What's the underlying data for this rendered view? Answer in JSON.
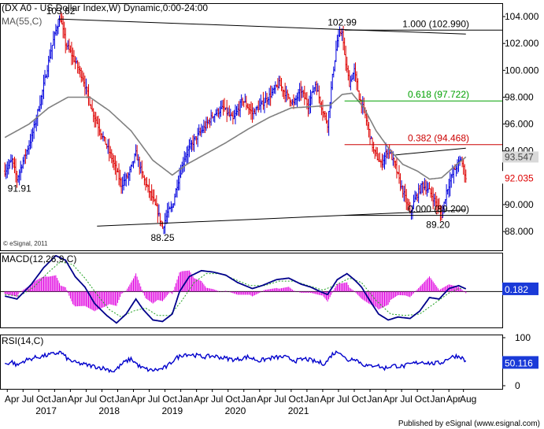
{
  "chart_data": [
    {
      "type": "candlestick",
      "panel": "price",
      "title": "(DX A0 - US Dollar Index,W) Dynamic,0:00-24:00",
      "overlay_label": "MA(55,C)",
      "copyright": "© eSignal, 2011",
      "ylim": [
        86.6,
        105.0
      ],
      "yticks": [
        "88.000",
        "90.000",
        "92.000",
        "94.000",
        "96.000",
        "98.000",
        "100.000",
        "102.000",
        "104.000"
      ],
      "last_value": "92.035",
      "ma_value": "93.547",
      "price_path": [
        [
          0,
          92.5
        ],
        [
          6,
          93.3
        ],
        [
          10,
          91.9
        ],
        [
          14,
          93.0
        ],
        [
          22,
          95.0
        ],
        [
          30,
          98.0
        ],
        [
          38,
          101.5
        ],
        [
          43,
          103.3
        ],
        [
          46,
          103.82
        ],
        [
          50,
          102.0
        ],
        [
          56,
          101.0
        ],
        [
          64,
          99.5
        ],
        [
          72,
          97.0
        ],
        [
          80,
          95.2
        ],
        [
          88,
          93.5
        ],
        [
          96,
          91.5
        ],
        [
          102,
          92.2
        ],
        [
          108,
          93.8
        ],
        [
          114,
          92.0
        ],
        [
          120,
          90.8
        ],
        [
          126,
          89.5
        ],
        [
          130,
          88.25
        ],
        [
          134,
          89.4
        ],
        [
          138,
          89.8
        ],
        [
          142,
          91.5
        ],
        [
          148,
          93.5
        ],
        [
          156,
          94.8
        ],
        [
          164,
          95.7
        ],
        [
          172,
          96.7
        ],
        [
          180,
          97.2
        ],
        [
          188,
          96.3
        ],
        [
          196,
          97.8
        ],
        [
          204,
          96.8
        ],
        [
          212,
          97.5
        ],
        [
          220,
          98.3
        ],
        [
          226,
          99.0
        ],
        [
          232,
          98.2
        ],
        [
          238,
          97.5
        ],
        [
          244,
          98.5
        ],
        [
          250,
          97.4
        ],
        [
          256,
          99.0
        ],
        [
          262,
          97.0
        ],
        [
          266,
          96.0
        ],
        [
          270,
          99.5
        ],
        [
          274,
          102.2
        ],
        [
          278,
          102.99
        ],
        [
          280,
          101.0
        ],
        [
          284,
          99.0
        ],
        [
          288,
          100.0
        ],
        [
          292,
          98.0
        ],
        [
          296,
          97.0
        ],
        [
          300,
          95.5
        ],
        [
          304,
          94.0
        ],
        [
          310,
          93.0
        ],
        [
          316,
          94.2
        ],
        [
          322,
          92.8
        ],
        [
          326,
          91.5
        ],
        [
          330,
          90.5
        ],
        [
          334,
          89.3
        ],
        [
          338,
          90.4
        ],
        [
          344,
          91.5
        ],
        [
          350,
          91.0
        ],
        [
          356,
          90.0
        ],
        [
          360,
          89.2
        ],
        [
          364,
          91.0
        ],
        [
          370,
          92.5
        ],
        [
          376,
          93.4
        ],
        [
          380,
          92.035
        ]
      ],
      "ma_path": [
        [
          0,
          95.0
        ],
        [
          20,
          96.0
        ],
        [
          36,
          97.2
        ],
        [
          52,
          98.0
        ],
        [
          70,
          98.0
        ],
        [
          86,
          97.0
        ],
        [
          104,
          95.5
        ],
        [
          122,
          93.3
        ],
        [
          138,
          92.2
        ],
        [
          150,
          93.0
        ],
        [
          164,
          93.7
        ],
        [
          182,
          94.6
        ],
        [
          200,
          95.6
        ],
        [
          218,
          96.5
        ],
        [
          236,
          97.2
        ],
        [
          254,
          97.3
        ],
        [
          268,
          97.4
        ],
        [
          278,
          98.2
        ],
        [
          286,
          98.3
        ],
        [
          296,
          97.2
        ],
        [
          306,
          95.5
        ],
        [
          318,
          94.0
        ],
        [
          328,
          93.0
        ],
        [
          340,
          92.5
        ],
        [
          350,
          91.9
        ],
        [
          360,
          92.0
        ],
        [
          370,
          92.8
        ],
        [
          380,
          93.547
        ]
      ],
      "trendlines": [
        {
          "from": [
            44,
            103.82
          ],
          "to": [
            380,
            102.7
          ]
        },
        {
          "from": [
            76,
            88.4
          ],
          "to": [
            380,
            89.6
          ]
        },
        {
          "from": [
            322,
            93.7
          ],
          "to": [
            380,
            94.2
          ]
        }
      ],
      "fib_levels": [
        {
          "label": "1.000 (102.990)",
          "value": 102.99,
          "color": "#000000",
          "x_start": 280
        },
        {
          "label": "0.618 (97.722)",
          "value": 97.722,
          "color": "#00a000",
          "x_start": 280
        },
        {
          "label": "0.382 (94.468)",
          "value": 94.468,
          "color": "#cc0000",
          "x_start": 280
        },
        {
          "label": "0.000 (89.200)",
          "value": 89.2,
          "color": "#000000",
          "x_start": 280
        }
      ],
      "annotations": [
        {
          "text": "103.82",
          "x": 46,
          "y": 103.82,
          "pos": "above"
        },
        {
          "text": "91.91",
          "x": 12,
          "y": 91.91,
          "pos": "below"
        },
        {
          "text": "88.25",
          "x": 130,
          "y": 88.25,
          "pos": "below"
        },
        {
          "text": "102.99",
          "x": 278,
          "y": 102.99,
          "pos": "above"
        },
        {
          "text": "89.20",
          "x": 357,
          "y": 89.2,
          "pos": "below"
        }
      ]
    },
    {
      "type": "line",
      "panel": "macd",
      "title": "MACD(12,26,9,C)",
      "ylim": [
        -2.4,
        2.6
      ],
      "last_value": "0.182",
      "macd_path": [
        [
          0,
          -0.3
        ],
        [
          10,
          -0.5
        ],
        [
          22,
          0.5
        ],
        [
          32,
          1.6
        ],
        [
          42,
          2.4
        ],
        [
          50,
          2.1
        ],
        [
          58,
          1.0
        ],
        [
          66,
          0.3
        ],
        [
          74,
          -0.8
        ],
        [
          84,
          -1.6
        ],
        [
          92,
          -2.1
        ],
        [
          100,
          -1.5
        ],
        [
          108,
          -0.5
        ],
        [
          114,
          -1.2
        ],
        [
          122,
          -1.9
        ],
        [
          130,
          -2.0
        ],
        [
          138,
          -1.5
        ],
        [
          144,
          0.0
        ],
        [
          152,
          1.0
        ],
        [
          162,
          1.4
        ],
        [
          172,
          1.3
        ],
        [
          182,
          1.1
        ],
        [
          192,
          0.6
        ],
        [
          204,
          0.2
        ],
        [
          212,
          0.4
        ],
        [
          224,
          0.8
        ],
        [
          234,
          0.9
        ],
        [
          244,
          0.5
        ],
        [
          252,
          0.3
        ],
        [
          260,
          0.0
        ],
        [
          266,
          -0.2
        ],
        [
          274,
          0.8
        ],
        [
          282,
          1.2
        ],
        [
          288,
          0.8
        ],
        [
          294,
          0.3
        ],
        [
          300,
          -0.5
        ],
        [
          308,
          -1.5
        ],
        [
          316,
          -1.9
        ],
        [
          324,
          -1.7
        ],
        [
          334,
          -1.8
        ],
        [
          342,
          -1.3
        ],
        [
          350,
          -0.4
        ],
        [
          358,
          -0.5
        ],
        [
          366,
          0.2
        ],
        [
          374,
          0.4
        ],
        [
          380,
          0.182
        ]
      ],
      "signal_path": [
        [
          0,
          -0.2
        ],
        [
          12,
          -0.3
        ],
        [
          24,
          0.3
        ],
        [
          36,
          1.3
        ],
        [
          46,
          2.0
        ],
        [
          56,
          1.8
        ],
        [
          66,
          0.9
        ],
        [
          76,
          -0.2
        ],
        [
          86,
          -1.2
        ],
        [
          96,
          -1.7
        ],
        [
          106,
          -1.3
        ],
        [
          116,
          -1.1
        ],
        [
          126,
          -1.6
        ],
        [
          136,
          -1.6
        ],
        [
          146,
          -0.6
        ],
        [
          156,
          0.6
        ],
        [
          166,
          1.2
        ],
        [
          178,
          1.2
        ],
        [
          190,
          0.8
        ],
        [
          202,
          0.4
        ],
        [
          214,
          0.4
        ],
        [
          226,
          0.7
        ],
        [
          238,
          0.7
        ],
        [
          250,
          0.4
        ],
        [
          262,
          0.1
        ],
        [
          272,
          0.4
        ],
        [
          284,
          0.9
        ],
        [
          294,
          0.6
        ],
        [
          306,
          -0.6
        ],
        [
          318,
          -1.5
        ],
        [
          330,
          -1.6
        ],
        [
          342,
          -1.5
        ],
        [
          354,
          -0.8
        ],
        [
          366,
          -0.1
        ],
        [
          374,
          0.2
        ],
        [
          380,
          0.25
        ]
      ]
    },
    {
      "type": "line",
      "panel": "rsi",
      "title": "RSI(14,C)",
      "ylim": [
        0,
        100
      ],
      "yticks": [
        "0",
        "100"
      ],
      "last_value": "50.116",
      "rsi_path": [
        [
          0,
          45
        ],
        [
          6,
          50
        ],
        [
          10,
          42
        ],
        [
          16,
          52
        ],
        [
          24,
          58
        ],
        [
          32,
          62
        ],
        [
          40,
          66
        ],
        [
          46,
          70
        ],
        [
          52,
          55
        ],
        [
          58,
          48
        ],
        [
          66,
          44
        ],
        [
          74,
          40
        ],
        [
          82,
          36
        ],
        [
          90,
          30
        ],
        [
          98,
          48
        ],
        [
          104,
          56
        ],
        [
          112,
          38
        ],
        [
          120,
          32
        ],
        [
          128,
          34
        ],
        [
          134,
          40
        ],
        [
          140,
          56
        ],
        [
          148,
          66
        ],
        [
          156,
          64
        ],
        [
          164,
          60
        ],
        [
          172,
          62
        ],
        [
          180,
          58
        ],
        [
          190,
          54
        ],
        [
          200,
          60
        ],
        [
          210,
          52
        ],
        [
          220,
          58
        ],
        [
          230,
          60
        ],
        [
          240,
          52
        ],
        [
          248,
          56
        ],
        [
          256,
          50
        ],
        [
          264,
          46
        ],
        [
          270,
          66
        ],
        [
          276,
          72
        ],
        [
          282,
          52
        ],
        [
          288,
          58
        ],
        [
          294,
          46
        ],
        [
          300,
          40
        ],
        [
          306,
          44
        ],
        [
          312,
          36
        ],
        [
          320,
          42
        ],
        [
          328,
          40
        ],
        [
          336,
          46
        ],
        [
          344,
          50
        ],
        [
          352,
          46
        ],
        [
          360,
          48
        ],
        [
          366,
          58
        ],
        [
          372,
          62
        ],
        [
          376,
          60
        ],
        [
          380,
          50.116
        ]
      ]
    }
  ],
  "x_axis": {
    "month_ticks": [
      {
        "label": "Apr",
        "x": 2
      },
      {
        "label": "Jul",
        "x": 15
      },
      {
        "label": "Oct",
        "x": 28
      },
      {
        "label": "Jan",
        "x": 41
      },
      {
        "label": "Apr",
        "x": 54
      },
      {
        "label": "Jul",
        "x": 67
      },
      {
        "label": "Oct",
        "x": 80
      },
      {
        "label": "Jan",
        "x": 93
      },
      {
        "label": "Apr",
        "x": 106
      },
      {
        "label": "Jul",
        "x": 119
      },
      {
        "label": "Oct",
        "x": 132
      },
      {
        "label": "Jan",
        "x": 145
      },
      {
        "label": "Apr",
        "x": 158
      },
      {
        "label": "Jul",
        "x": 171
      },
      {
        "label": "Oct",
        "x": 184
      },
      {
        "label": "Jan",
        "x": 197
      },
      {
        "label": "Apr",
        "x": 210
      },
      {
        "label": "Jul",
        "x": 223
      },
      {
        "label": "Oct",
        "x": 236
      },
      {
        "label": "Jan",
        "x": 249
      },
      {
        "label": "Apr",
        "x": 262
      },
      {
        "label": "Jul",
        "x": 275
      },
      {
        "label": "Oct",
        "x": 288
      },
      {
        "label": "Jan",
        "x": 301
      },
      {
        "label": "Apr",
        "x": 314
      },
      {
        "label": "Jul",
        "x": 327
      },
      {
        "label": "Oct",
        "x": 340
      },
      {
        "label": "Jan",
        "x": 353
      },
      {
        "label": "Apr",
        "x": 366
      },
      {
        "label": "Aug",
        "x": 378
      }
    ],
    "year_ticks": [
      {
        "label": "2017",
        "x": 34
      },
      {
        "label": "2018",
        "x": 86
      },
      {
        "label": "2019",
        "x": 138
      },
      {
        "label": "2020",
        "x": 190
      },
      {
        "label": "2021",
        "x": 242
      }
    ],
    "domain": [
      -4,
      410
    ]
  },
  "footer": "Published by eSignal (www.esignal.com)",
  "colors": {
    "candle_up": "#0000dd",
    "candle_down": "#dd0000",
    "ma": "#808080",
    "macd": "#00008b",
    "signal": "#20a020",
    "histogram": "#e000e0",
    "rsi": "#0000cc",
    "value_box": "#1a3ad8"
  }
}
